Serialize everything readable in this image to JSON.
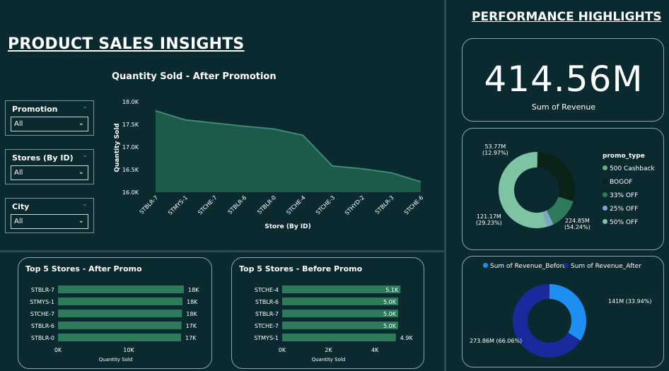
{
  "page_title": "PRODUCT SALES INSIGHTS",
  "perf_title": "PERFORMANCE HIGHLIGHTS",
  "slicers": [
    {
      "label": "Promotion",
      "value": "All"
    },
    {
      "label": "Stores (By ID)",
      "value": "All"
    },
    {
      "label": "City",
      "value": "All"
    }
  ],
  "kpi": {
    "value": "414.56M",
    "label": "Sum of Revenue"
  },
  "area_chart": {
    "title": "Quantity Sold - After Promotion",
    "xlabel": "Store (By ID)",
    "ylabel": "Quantity Sold",
    "yticks": [
      "18.0K",
      "17.5K",
      "17.0K",
      "16.5K",
      "16.0K"
    ],
    "color": "#1e5a4c"
  },
  "donut1": {
    "legend_title": "promo_type",
    "legend": [
      "500 Cashback",
      "BOGOF",
      "33% OFF",
      "25% OFF",
      "50% OFF"
    ],
    "labels": {
      "a_val": "53.77M",
      "a_pct": "(12.97%)",
      "b_val": "121.17M",
      "b_pct": "(29.23%)",
      "c_val": "224.85M",
      "c_pct": "(54.24%)"
    }
  },
  "donut2": {
    "legend": [
      "Sum of Revenue_Before",
      "Sum of Revenue_After"
    ],
    "label_before": "141M (33.94%)",
    "label_after": "273.86M (66.06%)"
  },
  "top_after": {
    "title": "Top 5 Stores - After Promo",
    "xlabel": "Quantity Sold",
    "ticks": [
      "0K",
      "10K"
    ]
  },
  "top_before": {
    "title": "Top 5 Stores - Before Promo",
    "xlabel": "Quantity Sold",
    "ticks": [
      "0K",
      "2K",
      "4K"
    ]
  },
  "chart_data": [
    {
      "type": "area",
      "title": "Quantity Sold - After Promotion",
      "xlabel": "Store (By ID)",
      "ylabel": "Quantity Sold",
      "categories": [
        "STBLR-7",
        "STMYS-1",
        "STCHE-7",
        "STBLR-6",
        "STBLR-0",
        "STCHE-4",
        "STCHE-3",
        "STHYD-2",
        "STBLR-3",
        "STCHE-6"
      ],
      "values": [
        17800,
        17600,
        17530,
        17460,
        17400,
        17260,
        16580,
        16520,
        16430,
        16230
      ],
      "ylim": [
        16000,
        18000
      ]
    },
    {
      "type": "pie",
      "legend_title": "promo_type",
      "categories": [
        "500 Cashback",
        "BOGOF",
        "33% OFF",
        "25% OFF",
        "50% OFF"
      ],
      "values": [
        0.4,
        29.23,
        12.97,
        2.8,
        54.24
      ],
      "colors": [
        "#6fa98a",
        "#0b2218",
        "#2e7b5c",
        "#7fa6c9",
        "#7ec4a2"
      ]
    },
    {
      "type": "pie",
      "categories": [
        "Sum of Revenue_Before",
        "Sum of Revenue_After"
      ],
      "values": [
        141,
        273.86
      ],
      "colors": [
        "#1e8ef0",
        "#1a2a9c"
      ]
    },
    {
      "type": "bar",
      "title": "Top 5 Stores - After Promo",
      "xlabel": "Quantity Sold",
      "categories": [
        "STBLR-7",
        "STMYS-1",
        "STCHE-7",
        "STBLR-6",
        "STBLR-0"
      ],
      "values": [
        17800,
        17600,
        17530,
        17460,
        17400
      ],
      "labels": [
        "18K",
        "18K",
        "18K",
        "17K",
        "17K"
      ],
      "xlim": [
        0,
        18000
      ]
    },
    {
      "type": "bar",
      "title": "Top 5 Stores - Before Promo",
      "xlabel": "Quantity Sold",
      "categories": [
        "STCHE-4",
        "STBLR-6",
        "STBLR-7",
        "STCHE-7",
        "STMYS-1"
      ],
      "values": [
        5100,
        5000,
        5000,
        5000,
        4900
      ],
      "labels": [
        "5.1K",
        "5.0K",
        "5.0K",
        "5.0K",
        "4.9K"
      ],
      "xlim": [
        0,
        5000
      ]
    }
  ]
}
